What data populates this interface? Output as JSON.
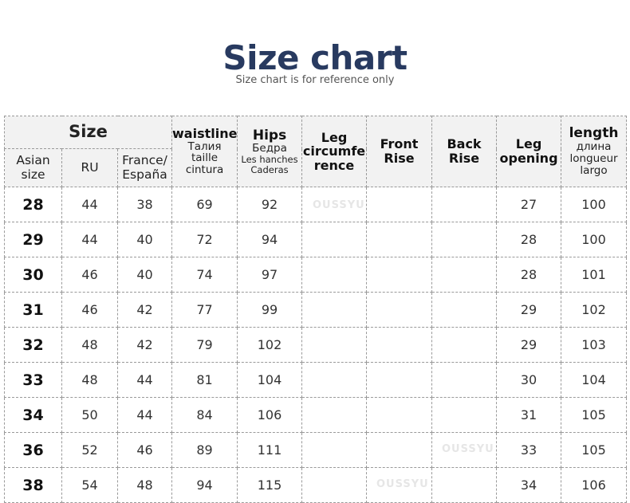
{
  "title": "Size chart",
  "subtitle": "Size chart is for reference only",
  "watermark": "OUSSYU",
  "header": {
    "size": "Size",
    "asian_size": [
      "Asian",
      "size"
    ],
    "ru": "RU",
    "france": [
      "France/",
      "España"
    ],
    "waistline": {
      "main": "waistline",
      "lines": [
        "Талия",
        "taille",
        "cintura"
      ]
    },
    "hips": {
      "main": "Hips",
      "lines": [
        "Бедра",
        "Les hanches",
        "Caderas"
      ]
    },
    "leg_circumference": [
      "Leg",
      "circumfe",
      "rence"
    ],
    "front_rise": [
      "Front",
      "Rise"
    ],
    "back_rise": [
      "Back",
      "Rise"
    ],
    "leg_opening": [
      "Leg",
      "opening"
    ],
    "length": {
      "main": "length",
      "lines": [
        "длина",
        "longueur",
        "largo"
      ]
    }
  },
  "rows": [
    [
      "28",
      "44",
      "38",
      "69",
      "92",
      "",
      "",
      "",
      "27",
      "100"
    ],
    [
      "29",
      "44",
      "40",
      "72",
      "94",
      "",
      "",
      "",
      "28",
      "100"
    ],
    [
      "30",
      "46",
      "40",
      "74",
      "97",
      "",
      "",
      "",
      "28",
      "101"
    ],
    [
      "31",
      "46",
      "42",
      "77",
      "99",
      "",
      "",
      "",
      "29",
      "102"
    ],
    [
      "32",
      "48",
      "42",
      "79",
      "102",
      "",
      "",
      "",
      "29",
      "103"
    ],
    [
      "33",
      "48",
      "44",
      "81",
      "104",
      "",
      "",
      "",
      "30",
      "104"
    ],
    [
      "34",
      "50",
      "44",
      "84",
      "106",
      "",
      "",
      "",
      "31",
      "105"
    ],
    [
      "36",
      "52",
      "46",
      "89",
      "111",
      "",
      "",
      "",
      "33",
      "105"
    ],
    [
      "38",
      "54",
      "48",
      "94",
      "115",
      "",
      "",
      "",
      "34",
      "106"
    ]
  ]
}
